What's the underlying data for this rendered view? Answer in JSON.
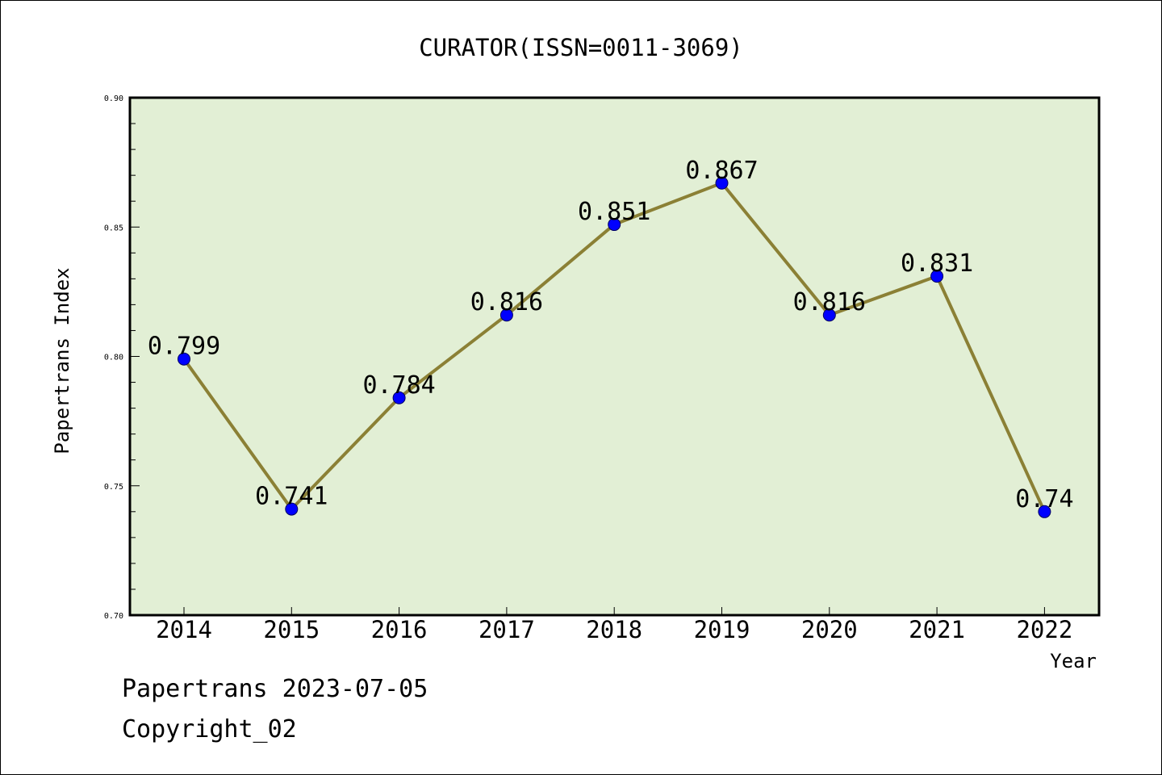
{
  "chart_data": {
    "type": "line",
    "title": "CURATOR(ISSN=0011-3069)",
    "xlabel": "Year",
    "ylabel": "Papertrans Index",
    "categories": [
      "2014",
      "2015",
      "2016",
      "2017",
      "2018",
      "2019",
      "2020",
      "2021",
      "2022"
    ],
    "series": [
      {
        "values": [
          0.799,
          0.741,
          0.784,
          0.816,
          0.851,
          0.867,
          0.816,
          0.831,
          0.74
        ],
        "data_labels": [
          "0.799",
          "0.741",
          "0.784",
          "0.816",
          "0.851",
          "0.867",
          "0.816",
          "0.831",
          "0.74"
        ]
      }
    ],
    "ylim": [
      0.7,
      0.9
    ],
    "yticks": [
      "0.70",
      "0.75",
      "0.80",
      "0.85",
      "0.90"
    ],
    "grid": false,
    "colors": {
      "plot_background": "#e2efd5",
      "line": "#8b8035",
      "marker": "#0000ff"
    }
  },
  "footer": {
    "line1": "Papertrans 2023-07-05",
    "line2": "Copyright_02"
  }
}
